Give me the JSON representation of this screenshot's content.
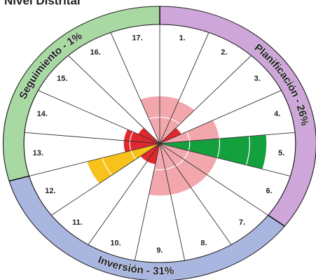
{
  "chart_data": {
    "type": "polar_area",
    "title": "Nivel Distrital",
    "categories": [
      "1.",
      "2.",
      "3.",
      "4.",
      "5.",
      "6.",
      "7.",
      "8.",
      "9.",
      "10.",
      "11.",
      "12.",
      "13.",
      "14.",
      "15.",
      "16.",
      "17."
    ],
    "values": [
      45,
      43,
      20,
      50,
      89,
      50,
      50,
      50,
      50,
      20,
      20,
      63,
      30,
      30,
      20,
      0,
      45
    ],
    "colors": [
      "#f2a7ad",
      "#f2a7ad",
      "#e0282e",
      "#f2a7ad",
      "#14a03c",
      "#f2a7ad",
      "#f2a7ad",
      "#f2a7ad",
      "#f2a7ad",
      "#e0282e",
      "#e0282e",
      "#f7c21a",
      "#e0282e",
      "#e0282e",
      "#e0282e",
      "#e0282e",
      "#f2a7ad"
    ],
    "rlim": [
      0,
      100
    ],
    "rticks": [
      25,
      50,
      75,
      100
    ],
    "grid": true,
    "groups": [
      {
        "label": "Planificación - 26%",
        "color": "#cfa6da",
        "sectors": 6
      },
      {
        "label": "Inversión - 31%",
        "color": "#a9b6e0",
        "sectors": 6
      },
      {
        "label": "Seguimiento - 1%",
        "color": "#a9d9a3",
        "sectors": 5
      }
    ]
  }
}
